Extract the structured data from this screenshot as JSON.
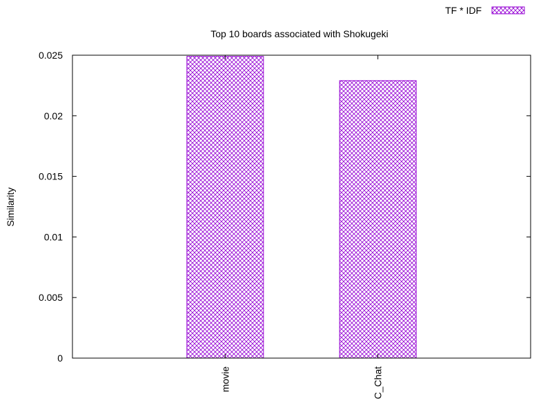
{
  "chart_data": {
    "type": "bar",
    "title": "Top 10 boards associated with Shokugeki",
    "xlabel": "",
    "ylabel": "Similarity",
    "categories": [
      "movie",
      "C_Chat"
    ],
    "series": [
      {
        "name": "TF * IDF",
        "values": [
          0.0249,
          0.0229
        ]
      }
    ],
    "ylim": [
      0,
      0.025
    ],
    "yticks": [
      "0",
      "0.005",
      "0.01",
      "0.015",
      "0.02",
      "0.025"
    ],
    "grid": false,
    "legend_position": "top-right",
    "bar_pattern": "crosshatch",
    "colors": {
      "bar": "#9400d3",
      "axis": "#000000"
    }
  }
}
